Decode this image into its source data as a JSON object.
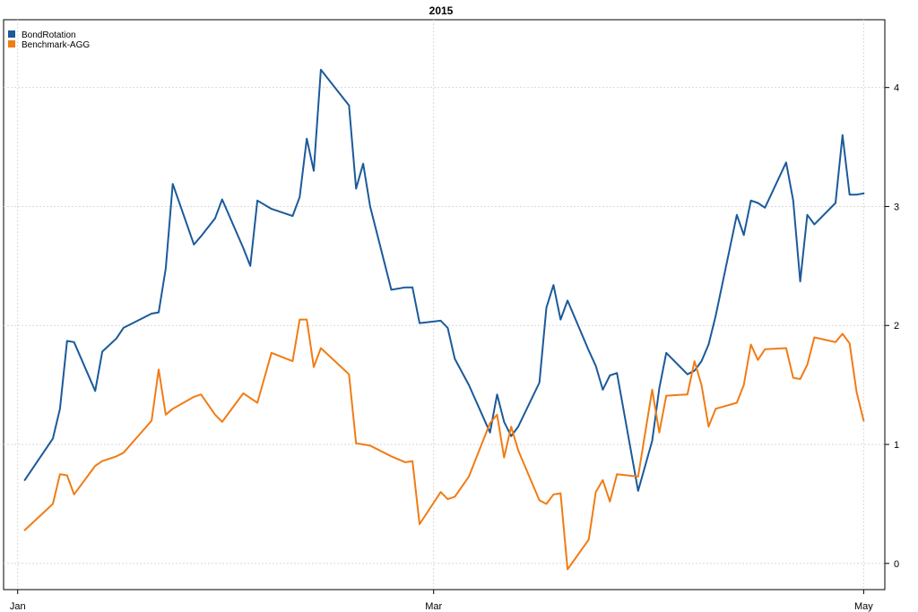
{
  "colors": {
    "bondrotation": "#1b5a9b",
    "benchmark": "#f07c14"
  },
  "chart_data": {
    "type": "line",
    "title": "2015",
    "xlabel": "",
    "ylabel": "",
    "x_tick_labels": [
      {
        "label": "Jan",
        "date": "2015-01-01"
      },
      {
        "label": "Mar",
        "date": "2015-03-01"
      },
      {
        "label": "May",
        "date": "2015-05-01"
      }
    ],
    "xlim": [
      "2014-12-30",
      "2015-05-04"
    ],
    "ylim": [
      -0.22,
      4.57
    ],
    "y_ticks": [
      0,
      1,
      2,
      3,
      4
    ],
    "y_axis_side": "right",
    "grid": true,
    "legend": "top-left",
    "series": [
      {
        "name": "BondRotation",
        "color": "#1b5a9b",
        "points": [
          [
            "2015-01-02",
            0.7
          ],
          [
            "2015-01-06",
            1.05
          ],
          [
            "2015-01-07",
            1.3
          ],
          [
            "2015-01-08",
            1.87
          ],
          [
            "2015-01-09",
            1.86
          ],
          [
            "2015-01-12",
            1.45
          ],
          [
            "2015-01-13",
            1.78
          ],
          [
            "2015-01-15",
            1.89
          ],
          [
            "2015-01-16",
            1.98
          ],
          [
            "2015-01-20",
            2.1
          ],
          [
            "2015-01-21",
            2.11
          ],
          [
            "2015-01-22",
            2.48
          ],
          [
            "2015-01-23",
            3.19
          ],
          [
            "2015-01-26",
            2.68
          ],
          [
            "2015-01-27",
            2.75
          ],
          [
            "2015-01-29",
            2.9
          ],
          [
            "2015-01-30",
            3.06
          ],
          [
            "2015-02-02",
            2.65
          ],
          [
            "2015-02-03",
            2.5
          ],
          [
            "2015-02-04",
            3.05
          ],
          [
            "2015-02-06",
            2.98
          ],
          [
            "2015-02-09",
            2.92
          ],
          [
            "2015-02-10",
            3.08
          ],
          [
            "2015-02-11",
            3.57
          ],
          [
            "2015-02-12",
            3.3
          ],
          [
            "2015-02-13",
            4.15
          ],
          [
            "2015-02-17",
            3.85
          ],
          [
            "2015-02-18",
            3.15
          ],
          [
            "2015-02-19",
            3.36
          ],
          [
            "2015-02-20",
            3.0
          ],
          [
            "2015-02-23",
            2.3
          ],
          [
            "2015-02-25",
            2.32
          ],
          [
            "2015-02-26",
            2.32
          ],
          [
            "2015-02-27",
            2.02
          ],
          [
            "2015-03-02",
            2.04
          ],
          [
            "2015-03-03",
            1.98
          ],
          [
            "2015-03-04",
            1.72
          ],
          [
            "2015-03-06",
            1.5
          ],
          [
            "2015-03-09",
            1.1
          ],
          [
            "2015-03-10",
            1.42
          ],
          [
            "2015-03-11",
            1.19
          ],
          [
            "2015-03-12",
            1.07
          ],
          [
            "2015-03-13",
            1.15
          ],
          [
            "2015-03-16",
            1.52
          ],
          [
            "2015-03-17",
            2.15
          ],
          [
            "2015-03-18",
            2.34
          ],
          [
            "2015-03-19",
            2.05
          ],
          [
            "2015-03-20",
            2.21
          ],
          [
            "2015-03-23",
            1.79
          ],
          [
            "2015-03-24",
            1.66
          ],
          [
            "2015-03-25",
            1.46
          ],
          [
            "2015-03-26",
            1.58
          ],
          [
            "2015-03-27",
            1.6
          ],
          [
            "2015-03-30",
            0.61
          ],
          [
            "2015-04-01",
            1.03
          ],
          [
            "2015-04-02",
            1.47
          ],
          [
            "2015-04-03",
            1.77
          ],
          [
            "2015-04-06",
            1.59
          ],
          [
            "2015-04-07",
            1.62
          ],
          [
            "2015-04-08",
            1.7
          ],
          [
            "2015-04-09",
            1.84
          ],
          [
            "2015-04-10",
            2.08
          ],
          [
            "2015-04-13",
            2.93
          ],
          [
            "2015-04-14",
            2.76
          ],
          [
            "2015-04-15",
            3.05
          ],
          [
            "2015-04-16",
            3.03
          ],
          [
            "2015-04-17",
            2.99
          ],
          [
            "2015-04-20",
            3.37
          ],
          [
            "2015-04-21",
            3.05
          ],
          [
            "2015-04-22",
            2.37
          ],
          [
            "2015-04-23",
            2.93
          ],
          [
            "2015-04-24",
            2.85
          ],
          [
            "2015-04-27",
            3.03
          ],
          [
            "2015-04-28",
            3.6
          ],
          [
            "2015-04-29",
            3.1
          ],
          [
            "2015-04-30",
            3.1
          ],
          [
            "2015-05-01",
            3.11
          ]
        ]
      },
      {
        "name": "Benchmark-AGG",
        "color": "#f07c14",
        "points": [
          [
            "2015-01-02",
            0.28
          ],
          [
            "2015-01-06",
            0.5
          ],
          [
            "2015-01-07",
            0.75
          ],
          [
            "2015-01-08",
            0.74
          ],
          [
            "2015-01-09",
            0.58
          ],
          [
            "2015-01-12",
            0.82
          ],
          [
            "2015-01-13",
            0.86
          ],
          [
            "2015-01-15",
            0.9
          ],
          [
            "2015-01-16",
            0.93
          ],
          [
            "2015-01-20",
            1.2
          ],
          [
            "2015-01-21",
            1.63
          ],
          [
            "2015-01-22",
            1.25
          ],
          [
            "2015-01-23",
            1.3
          ],
          [
            "2015-01-26",
            1.4
          ],
          [
            "2015-01-27",
            1.42
          ],
          [
            "2015-01-29",
            1.25
          ],
          [
            "2015-01-30",
            1.19
          ],
          [
            "2015-02-02",
            1.43
          ],
          [
            "2015-02-03",
            1.39
          ],
          [
            "2015-02-04",
            1.35
          ],
          [
            "2015-02-06",
            1.77
          ],
          [
            "2015-02-09",
            1.7
          ],
          [
            "2015-02-10",
            2.05
          ],
          [
            "2015-02-11",
            2.05
          ],
          [
            "2015-02-12",
            1.65
          ],
          [
            "2015-02-13",
            1.81
          ],
          [
            "2015-02-17",
            1.59
          ],
          [
            "2015-02-18",
            1.01
          ],
          [
            "2015-02-19",
            1.0
          ],
          [
            "2015-02-20",
            0.99
          ],
          [
            "2015-02-23",
            0.9
          ],
          [
            "2015-02-25",
            0.85
          ],
          [
            "2015-02-26",
            0.86
          ],
          [
            "2015-02-27",
            0.33
          ],
          [
            "2015-03-02",
            0.6
          ],
          [
            "2015-03-03",
            0.54
          ],
          [
            "2015-03-04",
            0.56
          ],
          [
            "2015-03-06",
            0.73
          ],
          [
            "2015-03-09",
            1.18
          ],
          [
            "2015-03-10",
            1.25
          ],
          [
            "2015-03-11",
            0.89
          ],
          [
            "2015-03-12",
            1.15
          ],
          [
            "2015-03-13",
            0.95
          ],
          [
            "2015-03-16",
            0.53
          ],
          [
            "2015-03-17",
            0.5
          ],
          [
            "2015-03-18",
            0.58
          ],
          [
            "2015-03-19",
            0.59
          ],
          [
            "2015-03-20",
            -0.05
          ],
          [
            "2015-03-23",
            0.2
          ],
          [
            "2015-03-24",
            0.6
          ],
          [
            "2015-03-25",
            0.7
          ],
          [
            "2015-03-26",
            0.52
          ],
          [
            "2015-03-27",
            0.75
          ],
          [
            "2015-03-30",
            0.73
          ],
          [
            "2015-04-01",
            1.46
          ],
          [
            "2015-04-02",
            1.1
          ],
          [
            "2015-04-03",
            1.41
          ],
          [
            "2015-04-06",
            1.42
          ],
          [
            "2015-04-07",
            1.7
          ],
          [
            "2015-04-08",
            1.5
          ],
          [
            "2015-04-09",
            1.15
          ],
          [
            "2015-04-10",
            1.3
          ],
          [
            "2015-04-13",
            1.35
          ],
          [
            "2015-04-14",
            1.5
          ],
          [
            "2015-04-15",
            1.84
          ],
          [
            "2015-04-16",
            1.71
          ],
          [
            "2015-04-17",
            1.8
          ],
          [
            "2015-04-20",
            1.81
          ],
          [
            "2015-04-21",
            1.56
          ],
          [
            "2015-04-22",
            1.55
          ],
          [
            "2015-04-23",
            1.67
          ],
          [
            "2015-04-24",
            1.9
          ],
          [
            "2015-04-27",
            1.86
          ],
          [
            "2015-04-28",
            1.93
          ],
          [
            "2015-04-29",
            1.85
          ],
          [
            "2015-04-30",
            1.44
          ],
          [
            "2015-05-01",
            1.2
          ]
        ]
      }
    ]
  }
}
